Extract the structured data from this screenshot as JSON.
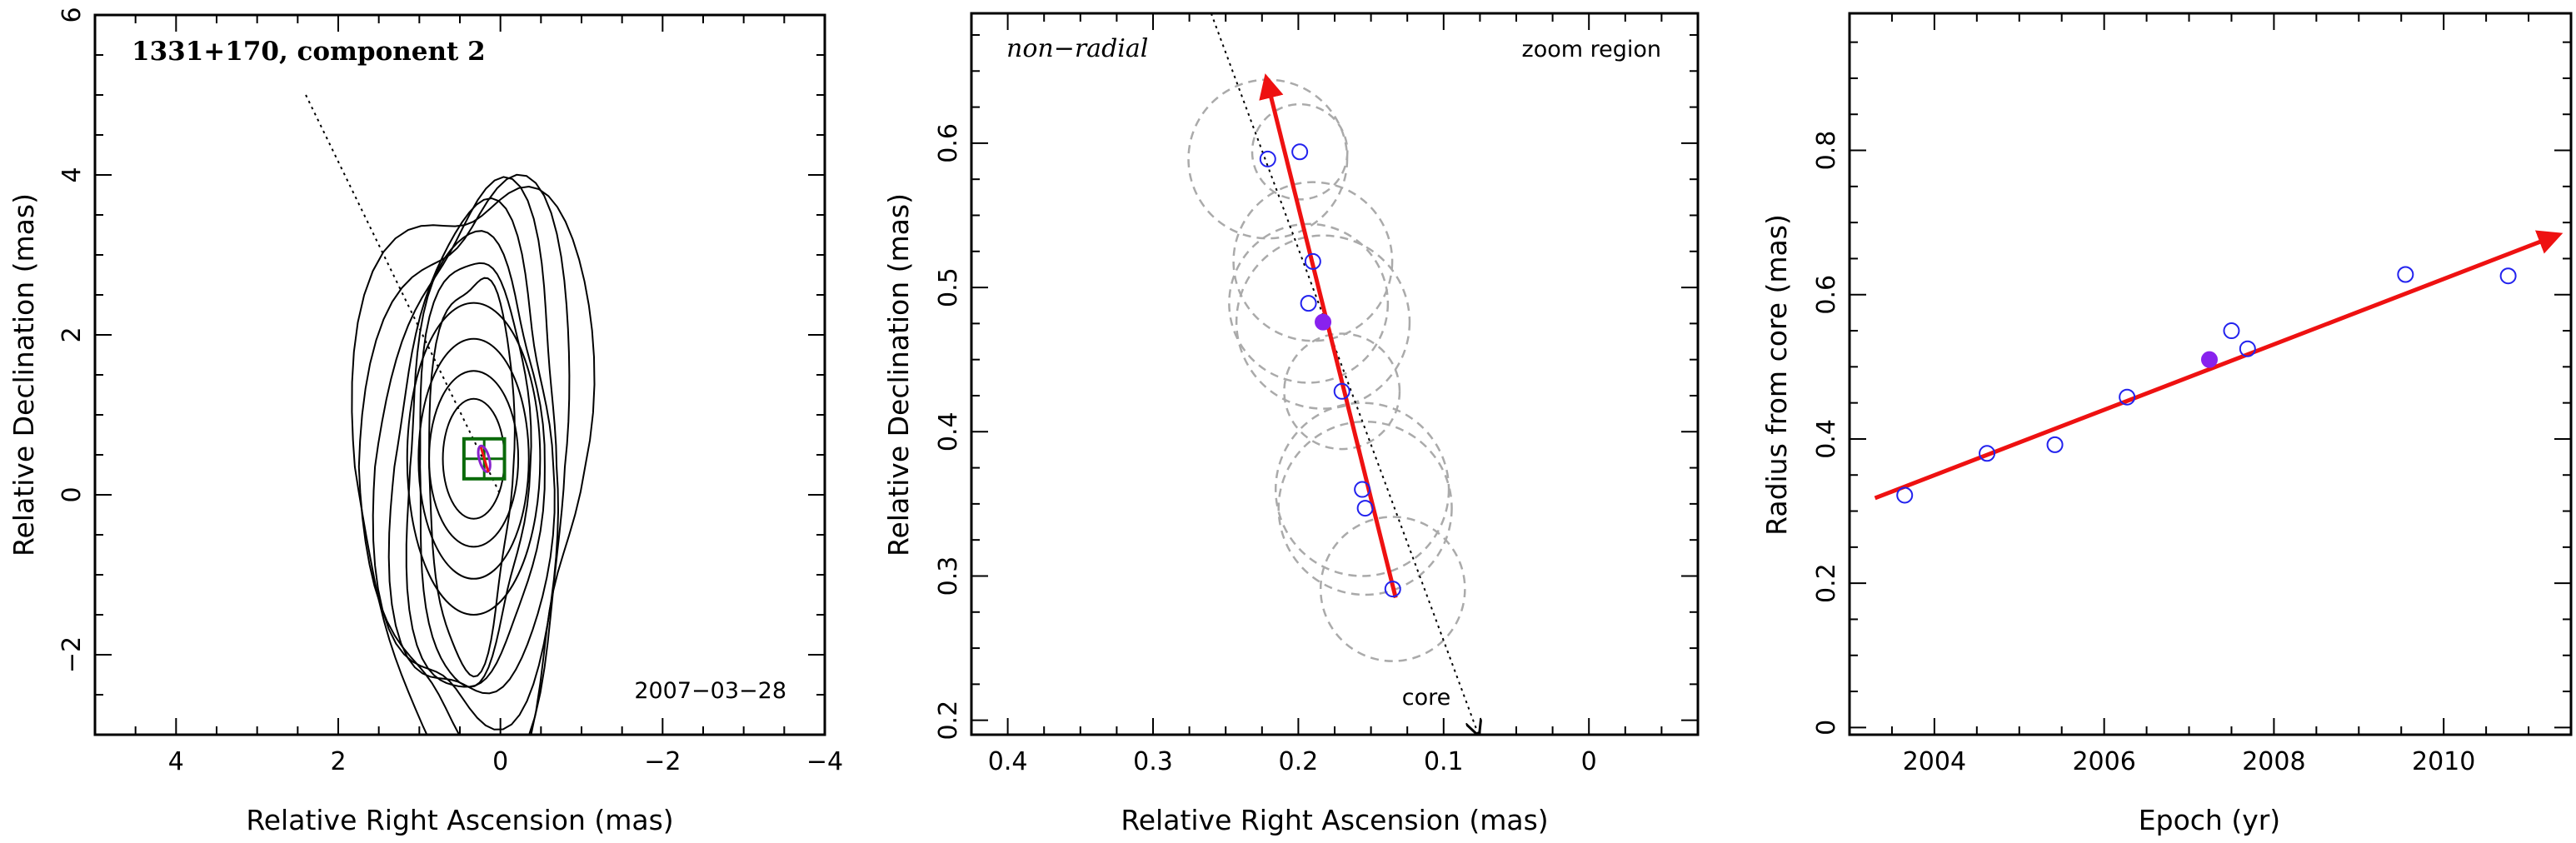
{
  "chart_data": [
    {
      "type": "contour",
      "title": "1331+170, component 2",
      "annotations": [
        "1331+170, component 2",
        "2007−03−28"
      ],
      "xlabel": "Relative Right Ascension (mas)",
      "ylabel": "Relative Declination (mas)",
      "xlim": [
        5,
        -4
      ],
      "ylim": [
        -3,
        6
      ],
      "xticks": [
        4,
        2,
        0,
        -2,
        -4
      ],
      "xtick_labels": [
        "4",
        "2",
        "0",
        "−2",
        "−4"
      ],
      "yticks": [
        -2,
        0,
        2,
        4,
        6
      ],
      "ytick_labels": [
        "−2",
        "0",
        "2",
        "4",
        "6"
      ],
      "contours": {
        "center": [
          0.38,
          0.35
        ],
        "semi_axes": [
          [
            0.52,
            2.45
          ],
          [
            0.68,
            2.65
          ],
          [
            0.83,
            2.85
          ],
          [
            0.98,
            3.05
          ],
          [
            1.12,
            3.25
          ],
          [
            1.27,
            3.45
          ],
          [
            1.42,
            3.7
          ]
        ],
        "inner_ellipses": [
          [
            0.38,
            0.75
          ],
          [
            0.55,
            1.1
          ],
          [
            0.68,
            1.5
          ],
          [
            0.82,
            1.95
          ]
        ]
      },
      "component_marker": {
        "x": 0.2,
        "y": 0.45
      },
      "zoom_box": {
        "x_range": [
          0.45,
          -0.05
        ],
        "y_range": [
          0.2,
          0.7
        ]
      },
      "jet_direction_line": [
        [
          2.4,
          5.0
        ],
        [
          0.0,
          0.0
        ]
      ],
      "grid": false
    },
    {
      "type": "scatter",
      "annotations": [
        "non−radial",
        "zoom region",
        "core"
      ],
      "xlabel": "Relative Right Ascension (mas)",
      "ylabel": "Relative Declination (mas)",
      "xlim": [
        0.425,
        -0.075
      ],
      "ylim": [
        0.19,
        0.69
      ],
      "xticks": [
        0.4,
        0.3,
        0.2,
        0.1,
        0
      ],
      "xtick_labels": [
        "0.4",
        "0.3",
        "0.2",
        "0.1",
        "0"
      ],
      "yticks": [
        0.2,
        0.3,
        0.4,
        0.5,
        0.6
      ],
      "ytick_labels": [
        "0.2",
        "0.3",
        "0.4",
        "0.5",
        "0.6"
      ],
      "points": [
        {
          "x": 0.221,
          "y": 0.589
        },
        {
          "x": 0.199,
          "y": 0.594
        },
        {
          "x": 0.19,
          "y": 0.518
        },
        {
          "x": 0.193,
          "y": 0.489
        },
        {
          "x": 0.17,
          "y": 0.428
        },
        {
          "x": 0.156,
          "y": 0.36
        },
        {
          "x": 0.154,
          "y": 0.347
        },
        {
          "x": 0.135,
          "y": 0.291
        }
      ],
      "highlight_point": {
        "x": 0.183,
        "y": 0.476
      },
      "uncertainty_circles": [
        {
          "x": 0.221,
          "y": 0.589,
          "r": 0.055
        },
        {
          "x": 0.199,
          "y": 0.594,
          "r": 0.033
        },
        {
          "x": 0.19,
          "y": 0.518,
          "r": 0.055
        },
        {
          "x": 0.193,
          "y": 0.489,
          "r": 0.055
        },
        {
          "x": 0.183,
          "y": 0.476,
          "r": 0.06
        },
        {
          "x": 0.17,
          "y": 0.428,
          "r": 0.04
        },
        {
          "x": 0.156,
          "y": 0.36,
          "r": 0.06
        },
        {
          "x": 0.154,
          "y": 0.347,
          "r": 0.06
        },
        {
          "x": 0.135,
          "y": 0.291,
          "r": 0.05
        }
      ],
      "fit_arrow": {
        "from": [
          0.133,
          0.285
        ],
        "to": [
          0.222,
          0.645
        ]
      },
      "core_line": {
        "from": [
          0.26,
          0.69
        ],
        "to": [
          0.076,
          0.19
        ]
      },
      "grid": false
    },
    {
      "type": "scatter",
      "xlabel": "Epoch (yr)",
      "ylabel": "Radius from core (mas)",
      "xlim": [
        2003.0,
        2011.5
      ],
      "ylim": [
        -0.01,
        0.99
      ],
      "xticks": [
        2004,
        2006,
        2008,
        2010
      ],
      "xtick_labels": [
        "2004",
        "2006",
        "2008",
        "2010"
      ],
      "yticks": [
        0,
        0.2,
        0.4,
        0.6,
        0.8
      ],
      "ytick_labels": [
        "0",
        "0.2",
        "0.4",
        "0.6",
        "0.8"
      ],
      "points": [
        {
          "x": 2003.65,
          "y": 0.322
        },
        {
          "x": 2004.62,
          "y": 0.38
        },
        {
          "x": 2005.42,
          "y": 0.392
        },
        {
          "x": 2006.27,
          "y": 0.458
        },
        {
          "x": 2007.5,
          "y": 0.55
        },
        {
          "x": 2007.69,
          "y": 0.525
        },
        {
          "x": 2009.55,
          "y": 0.628
        },
        {
          "x": 2010.76,
          "y": 0.626
        }
      ],
      "highlight_point": {
        "x": 2007.24,
        "y": 0.51
      },
      "fit_arrow": {
        "from": [
          2003.3,
          0.318
        ],
        "to": [
          2011.35,
          0.683
        ]
      },
      "grid": false
    }
  ]
}
